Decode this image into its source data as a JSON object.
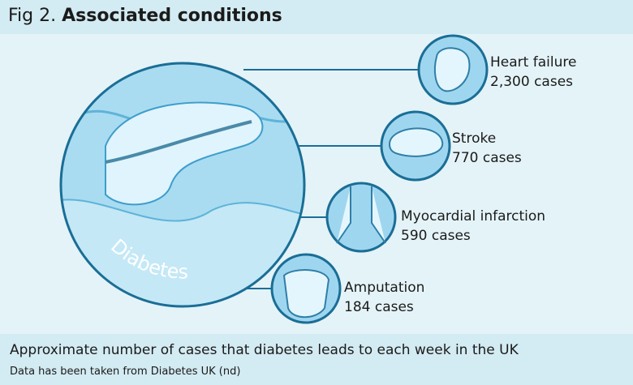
{
  "header": {
    "label": "Fig 2.",
    "title": "Associated conditions"
  },
  "center": {
    "label": "Diabetes"
  },
  "conditions": [
    {
      "name": "Heart failure",
      "cases": "2,300 cases"
    },
    {
      "name": "Stroke",
      "cases": "770 cases"
    },
    {
      "name": "Myocardial infarction",
      "cases": "590 cases"
    },
    {
      "name": "Amputation",
      "cases": "184 cases"
    }
  ],
  "footer": {
    "caption": "Approximate number of cases that diabetes leads to each week in the UK",
    "source": "Data has been taken from Diabetes UK (nd)"
  }
}
